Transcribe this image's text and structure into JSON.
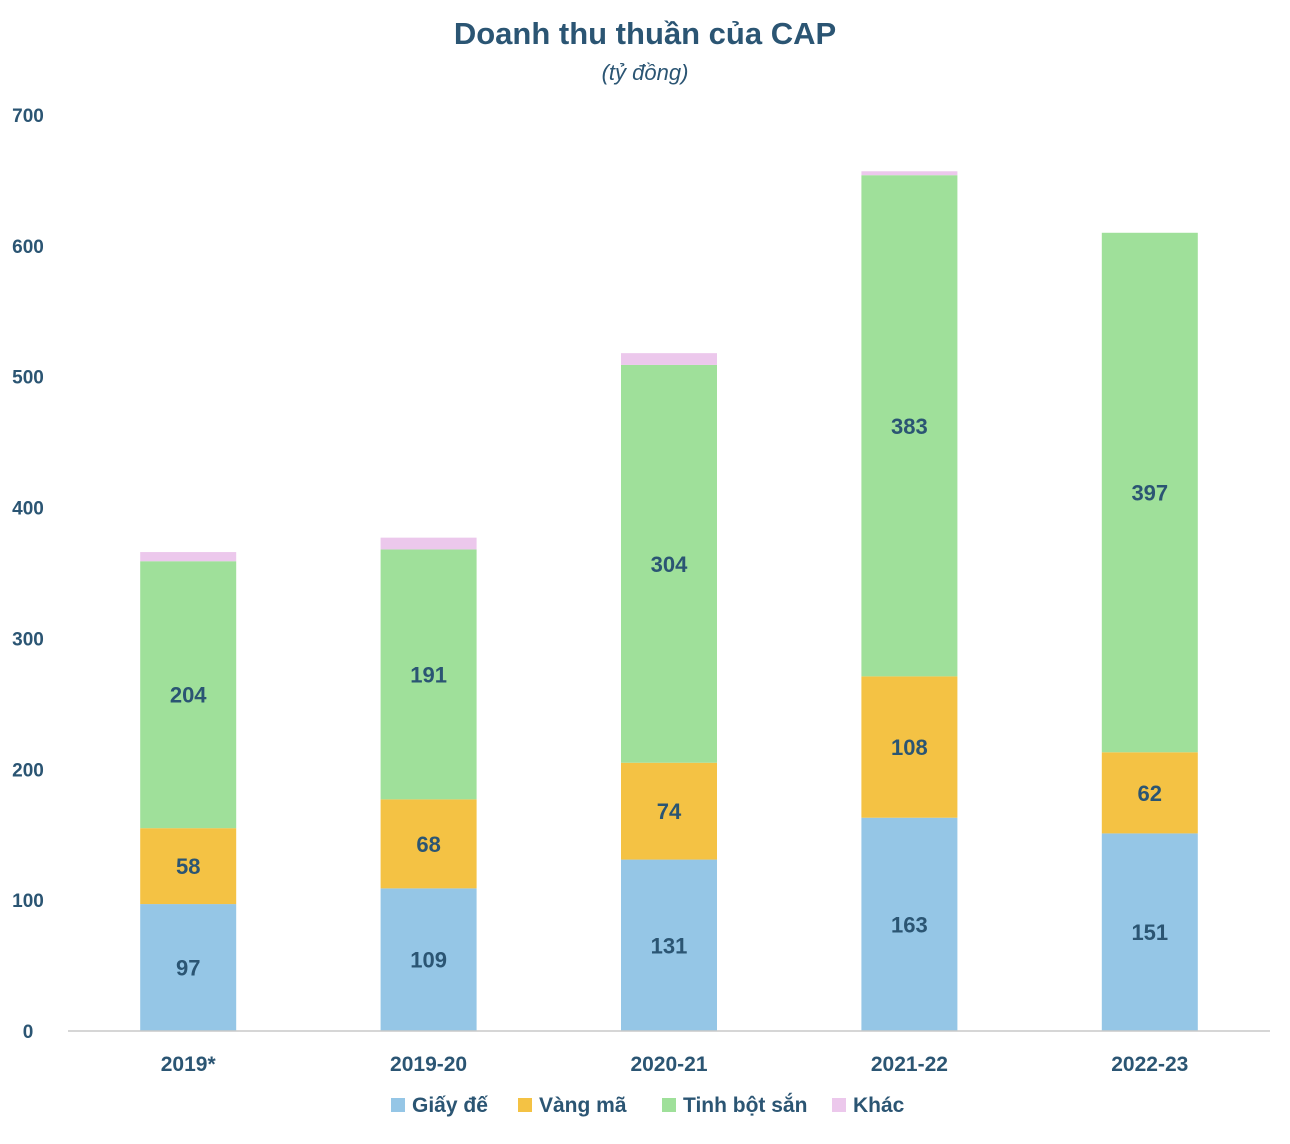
{
  "chart_data": {
    "type": "bar",
    "stacked": true,
    "title": "Doanh thu thuần của CAP",
    "subtitle": "(tỷ đồng)",
    "xlabel": "",
    "ylabel": "",
    "ylim": [
      0,
      700
    ],
    "yticks": [
      "0",
      "100",
      "200",
      "300",
      "400",
      "500",
      "600",
      "700"
    ],
    "categories": [
      "2019*",
      "2019-20",
      "2020-21",
      "2021-22",
      "2022-23"
    ],
    "series": [
      {
        "name": "Giấy đế",
        "color": "#95c6e6",
        "values": [
          97,
          109,
          131,
          163,
          151
        ],
        "labels": [
          "97",
          "109",
          "131",
          "163",
          "151"
        ]
      },
      {
        "name": "Vàng mã",
        "color": "#f4c244",
        "values": [
          58,
          68,
          74,
          108,
          62
        ],
        "labels": [
          "58",
          "68",
          "74",
          "108",
          "62"
        ]
      },
      {
        "name": "Tinh bột sắn",
        "color": "#9fe09a",
        "values": [
          204,
          191,
          304,
          383,
          397
        ],
        "labels": [
          "204",
          "191",
          "304",
          "383",
          "397"
        ]
      },
      {
        "name": "Khác",
        "color": "#ecc8ec",
        "values": [
          7,
          9,
          9,
          3,
          0
        ],
        "labels": [
          "",
          "",
          "",
          "",
          ""
        ]
      }
    ],
    "grid": false,
    "legend": "bottom"
  }
}
